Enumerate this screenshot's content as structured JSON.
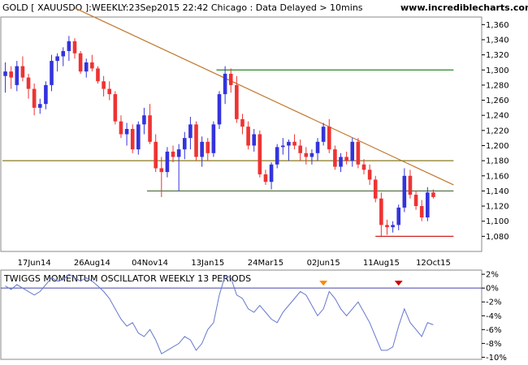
{
  "header": {
    "title": "GOLD [ XAUUSDO ]:WEEKLY:23Sep2015 22:42 Chicago : Data Delayed > 10mins",
    "website": "www.incrediblecharts.com"
  },
  "chart_data": [
    {
      "type": "candlestick",
      "name": "price",
      "ylim": [
        1060,
        1370
      ],
      "y_ticks": [
        "1,080",
        "1,100",
        "1,120",
        "1,140",
        "1,160",
        "1,180",
        "1,200",
        "1,220",
        "1,240",
        "1,260",
        "1,280",
        "1,300",
        "1,320",
        "1,340",
        "1,360"
      ],
      "x_labels": [
        "17Jun14",
        "26Aug14",
        "04Nov14",
        "13Jan15",
        "24Mar15",
        "02Jun15",
        "11Aug15",
        "12Oct15"
      ],
      "x_label_weeks": [
        5.5,
        15.5,
        25.5,
        35.5,
        45.5,
        55.5,
        65.5,
        74.5
      ],
      "colors": {
        "up": "#3333dd",
        "down": "#ee3333"
      },
      "candles": [
        {
          "o": 1292,
          "h": 1310,
          "l": 1270,
          "c": 1298
        },
        {
          "o": 1298,
          "h": 1305,
          "l": 1275,
          "c": 1290
        },
        {
          "o": 1280,
          "h": 1312,
          "l": 1272,
          "c": 1305
        },
        {
          "o": 1305,
          "h": 1318,
          "l": 1285,
          "c": 1290
        },
        {
          "o": 1290,
          "h": 1295,
          "l": 1262,
          "c": 1275
        },
        {
          "o": 1275,
          "h": 1282,
          "l": 1240,
          "c": 1250
        },
        {
          "o": 1250,
          "h": 1262,
          "l": 1242,
          "c": 1255
        },
        {
          "o": 1255,
          "h": 1285,
          "l": 1248,
          "c": 1280
        },
        {
          "o": 1280,
          "h": 1320,
          "l": 1272,
          "c": 1312
        },
        {
          "o": 1312,
          "h": 1322,
          "l": 1298,
          "c": 1318
        },
        {
          "o": 1318,
          "h": 1330,
          "l": 1305,
          "c": 1325
        },
        {
          "o": 1325,
          "h": 1345,
          "l": 1312,
          "c": 1338
        },
        {
          "o": 1338,
          "h": 1342,
          "l": 1315,
          "c": 1322
        },
        {
          "o": 1322,
          "h": 1325,
          "l": 1295,
          "c": 1298
        },
        {
          "o": 1298,
          "h": 1315,
          "l": 1290,
          "c": 1310
        },
        {
          "o": 1310,
          "h": 1320,
          "l": 1298,
          "c": 1302
        },
        {
          "o": 1302,
          "h": 1305,
          "l": 1282,
          "c": 1285
        },
        {
          "o": 1285,
          "h": 1292,
          "l": 1265,
          "c": 1275
        },
        {
          "o": 1275,
          "h": 1285,
          "l": 1260,
          "c": 1268
        },
        {
          "o": 1268,
          "h": 1272,
          "l": 1228,
          "c": 1232
        },
        {
          "o": 1232,
          "h": 1240,
          "l": 1210,
          "c": 1215
        },
        {
          "o": 1215,
          "h": 1230,
          "l": 1200,
          "c": 1222
        },
        {
          "o": 1222,
          "h": 1228,
          "l": 1190,
          "c": 1195
        },
        {
          "o": 1195,
          "h": 1232,
          "l": 1188,
          "c": 1228
        },
        {
          "o": 1228,
          "h": 1250,
          "l": 1215,
          "c": 1240
        },
        {
          "o": 1240,
          "h": 1255,
          "l": 1202,
          "c": 1205
        },
        {
          "o": 1205,
          "h": 1215,
          "l": 1165,
          "c": 1170
        },
        {
          "o": 1170,
          "h": 1185,
          "l": 1132,
          "c": 1165
        },
        {
          "o": 1165,
          "h": 1198,
          "l": 1158,
          "c": 1192
        },
        {
          "o": 1192,
          "h": 1200,
          "l": 1178,
          "c": 1185
        },
        {
          "o": 1185,
          "h": 1202,
          "l": 1140,
          "c": 1195
        },
        {
          "o": 1195,
          "h": 1218,
          "l": 1182,
          "c": 1210
        },
        {
          "o": 1210,
          "h": 1238,
          "l": 1195,
          "c": 1228
        },
        {
          "o": 1228,
          "h": 1232,
          "l": 1180,
          "c": 1185
        },
        {
          "o": 1185,
          "h": 1212,
          "l": 1172,
          "c": 1205
        },
        {
          "o": 1205,
          "h": 1210,
          "l": 1180,
          "c": 1190
        },
        {
          "o": 1190,
          "h": 1232,
          "l": 1185,
          "c": 1228
        },
        {
          "o": 1228,
          "h": 1272,
          "l": 1222,
          "c": 1268
        },
        {
          "o": 1268,
          "h": 1305,
          "l": 1255,
          "c": 1295
        },
        {
          "o": 1295,
          "h": 1302,
          "l": 1270,
          "c": 1280
        },
        {
          "o": 1280,
          "h": 1292,
          "l": 1230,
          "c": 1235
        },
        {
          "o": 1235,
          "h": 1242,
          "l": 1215,
          "c": 1225
        },
        {
          "o": 1225,
          "h": 1232,
          "l": 1195,
          "c": 1200
        },
        {
          "o": 1200,
          "h": 1222,
          "l": 1192,
          "c": 1215
        },
        {
          "o": 1215,
          "h": 1220,
          "l": 1158,
          "c": 1162
        },
        {
          "o": 1162,
          "h": 1168,
          "l": 1148,
          "c": 1152
        },
        {
          "o": 1152,
          "h": 1178,
          "l": 1142,
          "c": 1175
        },
        {
          "o": 1175,
          "h": 1202,
          "l": 1170,
          "c": 1198
        },
        {
          "o": 1198,
          "h": 1210,
          "l": 1188,
          "c": 1200
        },
        {
          "o": 1200,
          "h": 1208,
          "l": 1180,
          "c": 1205
        },
        {
          "o": 1205,
          "h": 1215,
          "l": 1195,
          "c": 1200
        },
        {
          "o": 1200,
          "h": 1208,
          "l": 1180,
          "c": 1190
        },
        {
          "o": 1190,
          "h": 1198,
          "l": 1175,
          "c": 1185
        },
        {
          "o": 1185,
          "h": 1195,
          "l": 1175,
          "c": 1190
        },
        {
          "o": 1190,
          "h": 1210,
          "l": 1180,
          "c": 1205
        },
        {
          "o": 1205,
          "h": 1230,
          "l": 1200,
          "c": 1225
        },
        {
          "o": 1225,
          "h": 1235,
          "l": 1190,
          "c": 1195
        },
        {
          "o": 1195,
          "h": 1200,
          "l": 1168,
          "c": 1172
        },
        {
          "o": 1172,
          "h": 1190,
          "l": 1165,
          "c": 1185
        },
        {
          "o": 1185,
          "h": 1192,
          "l": 1175,
          "c": 1180
        },
        {
          "o": 1180,
          "h": 1210,
          "l": 1172,
          "c": 1205
        },
        {
          "o": 1205,
          "h": 1210,
          "l": 1170,
          "c": 1175
        },
        {
          "o": 1175,
          "h": 1182,
          "l": 1162,
          "c": 1168
        },
        {
          "o": 1168,
          "h": 1175,
          "l": 1148,
          "c": 1155
        },
        {
          "o": 1155,
          "h": 1160,
          "l": 1125,
          "c": 1130
        },
        {
          "o": 1130,
          "h": 1138,
          "l": 1080,
          "c": 1095
        },
        {
          "o": 1095,
          "h": 1102,
          "l": 1082,
          "c": 1092
        },
        {
          "o": 1092,
          "h": 1100,
          "l": 1085,
          "c": 1095
        },
        {
          "o": 1095,
          "h": 1122,
          "l": 1088,
          "c": 1118
        },
        {
          "o": 1118,
          "h": 1170,
          "l": 1112,
          "c": 1160
        },
        {
          "o": 1160,
          "h": 1168,
          "l": 1130,
          "c": 1135
        },
        {
          "o": 1135,
          "h": 1140,
          "l": 1115,
          "c": 1120
        },
        {
          "o": 1120,
          "h": 1128,
          "l": 1100,
          "c": 1105
        },
        {
          "o": 1105,
          "h": 1145,
          "l": 1100,
          "c": 1138
        },
        {
          "o": 1138,
          "h": 1142,
          "l": 1130,
          "c": 1132
        }
      ],
      "lines": [
        {
          "name": "downtrend",
          "color": "#c07830",
          "x1": 12.5,
          "y1": 1382,
          "x2": 78,
          "y2": 1148
        },
        {
          "name": "resistance-1300",
          "color": "#228822",
          "x1": 37,
          "y1": 1300,
          "x2": 78,
          "y2": 1300
        },
        {
          "name": "level-1180",
          "color": "#8a7a20",
          "x1": 0,
          "y1": 1180,
          "x2": 78,
          "y2": 1180
        },
        {
          "name": "level-1140",
          "color": "#4a6a3a",
          "x1": 25,
          "y1": 1140,
          "x2": 78,
          "y2": 1140
        },
        {
          "name": "support-1080",
          "color": "#cc2222",
          "x1": 64.5,
          "y1": 1080,
          "x2": 78,
          "y2": 1080
        }
      ]
    },
    {
      "type": "line",
      "name": "oscillator",
      "title": "TWIGGS MOMENTUM OSCILLATOR WEEKLY 13 PERIODS",
      "ylim": [
        -10.3,
        2.6
      ],
      "y_ticks": [
        "2%",
        "0%",
        "-2%",
        "-4%",
        "-6%",
        "-8%",
        "-10%"
      ],
      "color": "#6677cc",
      "values": [
        0.3,
        -0.2,
        0.5,
        0.0,
        -0.5,
        -1.0,
        -0.5,
        0.5,
        1.5,
        1.0,
        1.2,
        2.0,
        1.5,
        1.0,
        1.5,
        1.0,
        0.3,
        -0.5,
        -1.5,
        -3.0,
        -4.5,
        -5.5,
        -5.0,
        -6.5,
        -7.0,
        -6.0,
        -7.5,
        -9.5,
        -9.0,
        -8.5,
        -8.0,
        -7.0,
        -7.5,
        -9.0,
        -8.0,
        -6.0,
        -5.0,
        -1.0,
        1.8,
        1.5,
        -1.0,
        -1.5,
        -3.0,
        -3.5,
        -2.5,
        -3.5,
        -4.5,
        -5.0,
        -3.5,
        -2.5,
        -1.5,
        -0.5,
        -1.0,
        -2.5,
        -4.0,
        -3.0,
        -0.5,
        -1.5,
        -3.0,
        -4.0,
        -3.0,
        -2.0,
        -3.5,
        -5.0,
        -7.0,
        -9.0,
        -9.0,
        -8.5,
        -5.5,
        -3.0,
        -5.0,
        -6.0,
        -7.0,
        -5.0,
        -5.3
      ],
      "markers": [
        {
          "name": "orange-arrow",
          "color": "#ff8800",
          "x": 55.5
        },
        {
          "name": "red-arrow",
          "color": "#cc0000",
          "x": 68.5
        }
      ]
    }
  ]
}
